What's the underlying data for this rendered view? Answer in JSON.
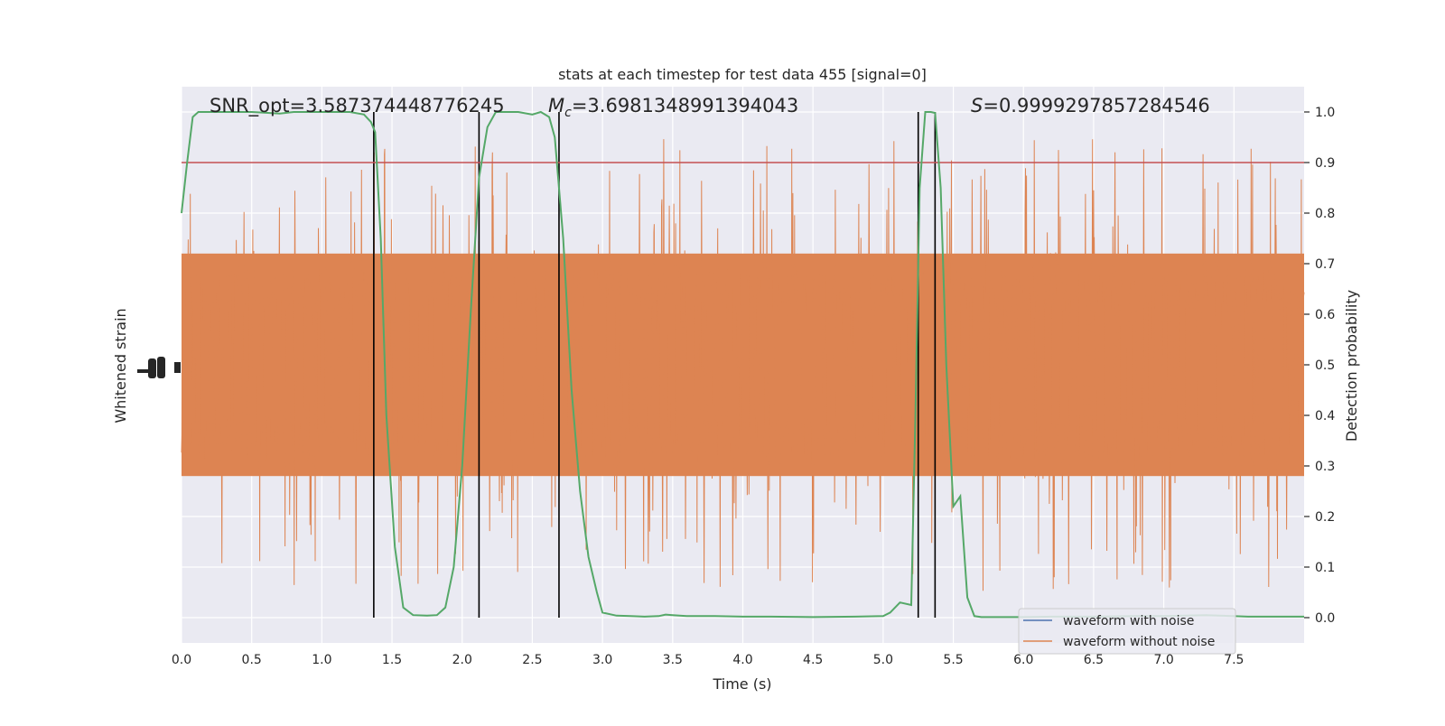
{
  "chart_data": {
    "type": "line",
    "title": "stats at each timestep for test data 455 [signal=0]",
    "xlabel": "Time (s)",
    "ylabel_left": "Whitened strain",
    "ylabel_right": "Detection probability",
    "xlim": [
      0.0,
      8.0
    ],
    "ylim_right": [
      -0.05,
      1.05
    ],
    "x_ticks": [
      "0.0",
      "0.5",
      "1.0",
      "1.5",
      "2.0",
      "2.5",
      "3.0",
      "3.5",
      "4.0",
      "4.5",
      "5.0",
      "5.5",
      "6.0",
      "6.5",
      "7.0",
      "7.5"
    ],
    "y_ticks_right": [
      "0.0",
      "0.1",
      "0.2",
      "0.3",
      "0.4",
      "0.5",
      "0.6",
      "0.7",
      "0.8",
      "0.9",
      "1.0"
    ],
    "grid": true,
    "legend_position": "lower-right",
    "annotations": {
      "snr": "SNR_opt=3.587374448776245",
      "mc_symbol": "M",
      "mc_sub": "c",
      "mc_value": "=3.6981348991394043",
      "s_symbol": "S",
      "s_value": "=0.9999297857284546"
    },
    "threshold": 0.9,
    "vertical_lines": [
      1.37,
      2.12,
      2.69,
      5.25,
      5.37
    ],
    "series": [
      {
        "name": "waveform with noise",
        "color": "#4c72b0",
        "values": []
      },
      {
        "name": "waveform without noise",
        "color": "#dd8452",
        "x_range": [
          0.0,
          8.0
        ],
        "typical_amplitude": 0.38,
        "peak_amplitude": 0.9
      },
      {
        "name": "detection probability",
        "color": "#55a868",
        "x": [
          0.0,
          0.04,
          0.08,
          0.12,
          0.2,
          0.3,
          0.5,
          0.7,
          0.8,
          0.9,
          1.0,
          1.1,
          1.2,
          1.3,
          1.35,
          1.38,
          1.42,
          1.46,
          1.52,
          1.58,
          1.65,
          1.75,
          1.82,
          1.88,
          1.94,
          2.0,
          2.06,
          2.12,
          2.18,
          2.24,
          2.3,
          2.4,
          2.5,
          2.56,
          2.62,
          2.66,
          2.72,
          2.78,
          2.84,
          2.9,
          2.96,
          3.0,
          3.1,
          3.2,
          3.3,
          3.4,
          3.45,
          3.5,
          3.6,
          3.8,
          4.0,
          4.2,
          4.5,
          4.8,
          5.0,
          5.05,
          5.12,
          5.2,
          5.23,
          5.26,
          5.3,
          5.34,
          5.37,
          5.41,
          5.45,
          5.5,
          5.55,
          5.6,
          5.65,
          5.7,
          5.8,
          6.0,
          6.2,
          6.5,
          6.8,
          7.0,
          7.3,
          7.4,
          7.6,
          8.0
        ],
        "values": [
          0.8,
          0.9,
          0.99,
          1.0,
          1.0,
          1.0,
          1.0,
          0.997,
          1.0,
          1.0,
          1.0,
          1.0,
          1.0,
          0.995,
          0.98,
          0.96,
          0.75,
          0.4,
          0.14,
          0.02,
          0.005,
          0.004,
          0.005,
          0.02,
          0.1,
          0.3,
          0.6,
          0.87,
          0.97,
          1.0,
          1.0,
          1.0,
          0.995,
          1.0,
          0.99,
          0.95,
          0.75,
          0.45,
          0.25,
          0.12,
          0.05,
          0.01,
          0.004,
          0.003,
          0.002,
          0.003,
          0.006,
          0.005,
          0.003,
          0.003,
          0.002,
          0.002,
          0.001,
          0.002,
          0.003,
          0.01,
          0.03,
          0.025,
          0.4,
          0.85,
          1.0,
          1.0,
          0.998,
          0.85,
          0.5,
          0.22,
          0.24,
          0.04,
          0.003,
          0.001,
          0.001,
          0.001,
          0.002,
          0.002,
          0.003,
          0.003,
          0.005,
          0.004,
          0.002,
          0.002
        ]
      }
    ]
  }
}
